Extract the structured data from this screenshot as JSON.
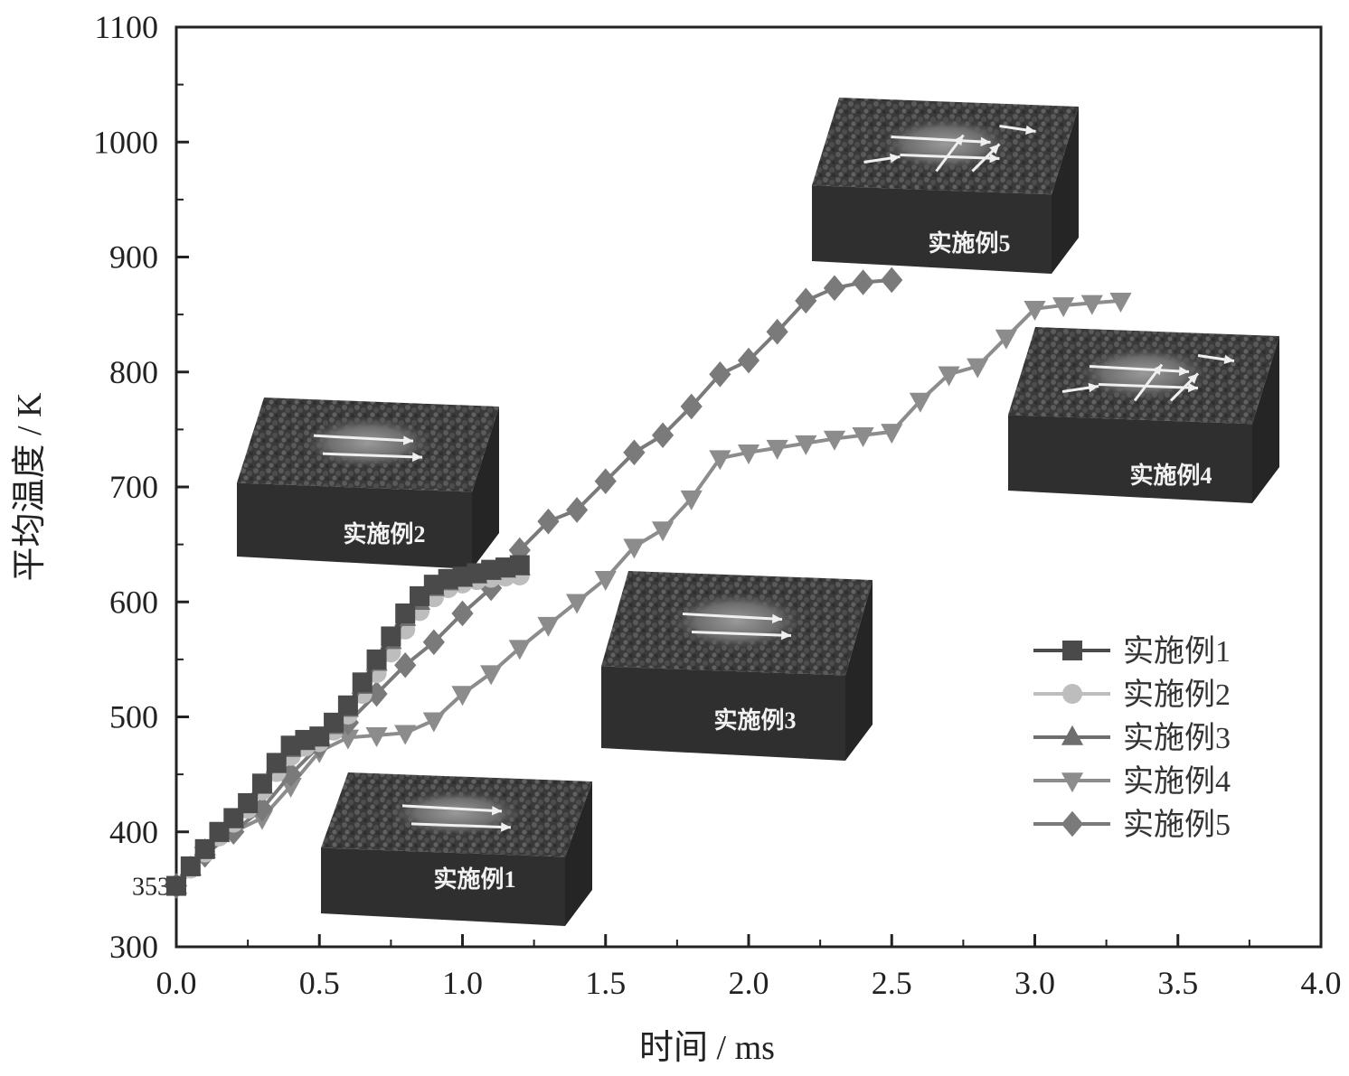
{
  "chart_data": {
    "type": "line",
    "xlabel": "时间 / ms",
    "ylabel": "平均温度 / K",
    "xlim": [
      0,
      4.0
    ],
    "ylim": [
      300,
      1100
    ],
    "xticks": [
      "0.0",
      "0.5",
      "1.0",
      "1.5",
      "2.0",
      "2.5",
      "3.0",
      "3.5",
      "4.0"
    ],
    "yticks": [
      "300",
      "400",
      "500",
      "600",
      "700",
      "800",
      "900",
      "1000",
      "1100"
    ],
    "extra_ytick": "353",
    "grid": false,
    "legend_position": "bottom-right",
    "series": [
      {
        "name": "实施例1",
        "marker": "square",
        "color": "#4a4a4a",
        "x": [
          0.0,
          0.05,
          0.1,
          0.15,
          0.2,
          0.25,
          0.3,
          0.35,
          0.4,
          0.45,
          0.5,
          0.55,
          0.6,
          0.65,
          0.7,
          0.75,
          0.8,
          0.85,
          0.9,
          0.95,
          1.0,
          1.05,
          1.1,
          1.15,
          1.2
        ],
        "y": [
          353,
          370,
          385,
          400,
          412,
          425,
          442,
          460,
          475,
          480,
          483,
          495,
          510,
          530,
          550,
          570,
          590,
          605,
          615,
          620,
          622,
          625,
          628,
          630,
          632
        ]
      },
      {
        "name": "实施例2",
        "marker": "circle",
        "color": "#bdbdbd",
        "x": [
          0.0,
          0.05,
          0.1,
          0.15,
          0.2,
          0.25,
          0.3,
          0.35,
          0.4,
          0.45,
          0.5,
          0.55,
          0.6,
          0.65,
          0.7,
          0.75,
          0.8,
          0.85,
          0.9,
          0.95,
          1.0,
          1.05,
          1.1,
          1.15,
          1.2
        ],
        "y": [
          353,
          368,
          382,
          396,
          408,
          420,
          436,
          452,
          466,
          474,
          478,
          488,
          502,
          520,
          538,
          556,
          576,
          592,
          604,
          612,
          616,
          619,
          621,
          622,
          623
        ]
      },
      {
        "name": "实施例3",
        "marker": "triangle-up",
        "color": "#6e6e6e",
        "x": [
          0.0,
          0.05,
          0.1,
          0.15,
          0.2,
          0.25,
          0.3,
          0.35,
          0.4,
          0.45,
          0.5,
          0.55,
          0.6,
          0.65,
          0.7,
          0.75,
          0.8,
          0.85,
          0.9,
          0.95,
          1.0,
          1.05,
          1.1,
          1.15,
          1.2
        ],
        "y": [
          353,
          369,
          384,
          398,
          410,
          423,
          440,
          458,
          472,
          478,
          481,
          492,
          507,
          527,
          547,
          566,
          586,
          600,
          612,
          617,
          620,
          623,
          626,
          628,
          630
        ]
      },
      {
        "name": "实施例4",
        "marker": "triangle-down",
        "color": "#8c8c8c",
        "x": [
          0.0,
          0.1,
          0.2,
          0.3,
          0.4,
          0.5,
          0.6,
          0.7,
          0.8,
          0.9,
          1.0,
          1.1,
          1.2,
          1.3,
          1.4,
          1.5,
          1.6,
          1.7,
          1.8,
          1.9,
          2.0,
          2.1,
          2.2,
          2.3,
          2.4,
          2.5,
          2.6,
          2.7,
          2.8,
          2.9,
          3.0,
          3.1,
          3.2,
          3.3
        ],
        "y": [
          353,
          380,
          400,
          412,
          440,
          470,
          482,
          484,
          486,
          497,
          520,
          538,
          560,
          580,
          600,
          620,
          648,
          663,
          690,
          725,
          730,
          734,
          738,
          742,
          745,
          748,
          775,
          798,
          805,
          830,
          855,
          858,
          860,
          862
        ]
      },
      {
        "name": "实施例5",
        "marker": "diamond",
        "color": "#7a7a7a",
        "x": [
          0.0,
          0.1,
          0.2,
          0.3,
          0.4,
          0.5,
          0.6,
          0.7,
          0.8,
          0.9,
          1.0,
          1.1,
          1.2,
          1.3,
          1.4,
          1.5,
          1.6,
          1.7,
          1.8,
          1.9,
          2.0,
          2.1,
          2.2,
          2.3,
          2.4,
          2.5
        ],
        "y": [
          353,
          380,
          400,
          420,
          450,
          475,
          495,
          520,
          545,
          565,
          590,
          612,
          645,
          670,
          680,
          705,
          730,
          745,
          770,
          798,
          810,
          835,
          862,
          873,
          878,
          880
        ]
      }
    ],
    "insets": [
      {
        "label": "实施例1"
      },
      {
        "label": "实施例2"
      },
      {
        "label": "实施例3"
      },
      {
        "label": "实施例4"
      },
      {
        "label": "实施例5"
      }
    ]
  }
}
